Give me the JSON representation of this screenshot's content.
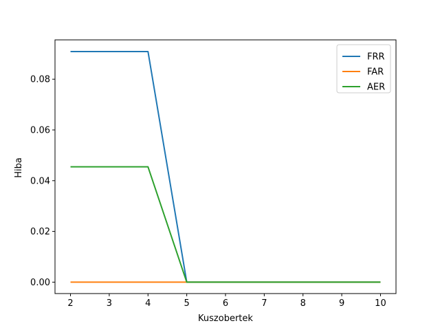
{
  "chart_data": {
    "type": "line",
    "title": "",
    "xlabel": "Kuszobertek",
    "ylabel": "Hiba",
    "x": [
      2,
      3,
      4,
      5,
      6,
      7,
      8,
      9,
      10
    ],
    "xticks": [
      "2",
      "3",
      "4",
      "5",
      "6",
      "7",
      "8",
      "9",
      "10"
    ],
    "yticks": [
      "0.00",
      "0.02",
      "0.04",
      "0.06",
      "0.08"
    ],
    "xlim": [
      1.6,
      10.4
    ],
    "ylim": [
      -0.0045,
      0.0955
    ],
    "grid": false,
    "legend_position": "top-right",
    "series": [
      {
        "name": "FRR",
        "color": "#1f77b4",
        "values": [
          0.0909,
          0.0909,
          0.0909,
          0,
          0,
          0,
          0,
          0,
          0
        ]
      },
      {
        "name": "FAR",
        "color": "#ff7f0e",
        "values": [
          0,
          0,
          0,
          0,
          0,
          0,
          0,
          0,
          0
        ]
      },
      {
        "name": "AER",
        "color": "#2ca02c",
        "values": [
          0.04545,
          0.04545,
          0.04545,
          0,
          0,
          0,
          0,
          0,
          0
        ]
      }
    ]
  }
}
